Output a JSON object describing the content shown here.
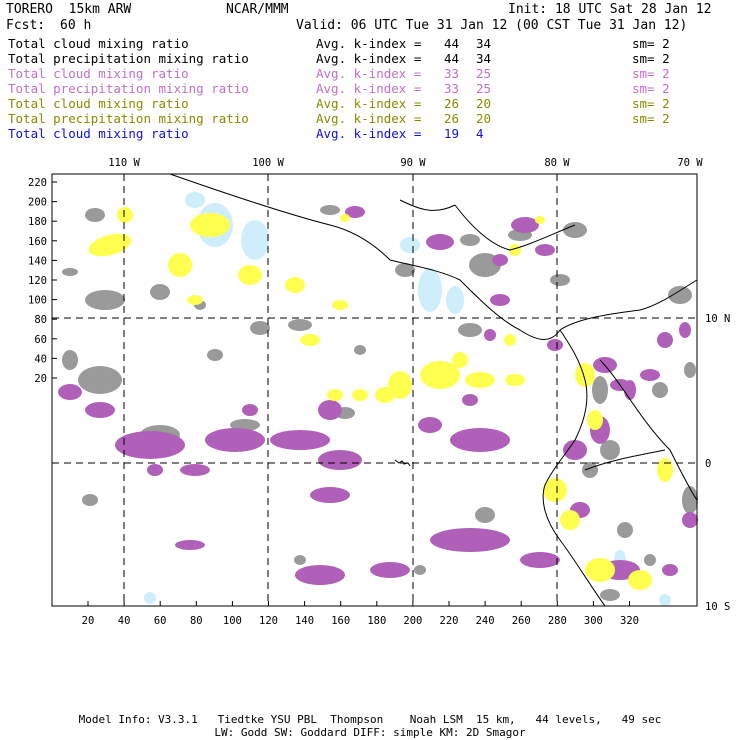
{
  "header": {
    "model": "TORERO  15km ARW",
    "center": "NCAR/MMM",
    "init": "Init: 18 UTC Sat 28 Jan 12",
    "fcst_label": "Fcst:",
    "fcst_value": "60 h",
    "valid": "Valid: 06 UTC Tue 31 Jan 12 (00 CST Tue 31 Jan 12)"
  },
  "legend_rows": [
    {
      "field": "Total cloud mixing ratio",
      "kidx": "Avg. k-index =",
      "from": "44",
      "to": "34",
      "sm": "sm= 2",
      "color": "#000000"
    },
    {
      "field": "Total precipitation mixing ratio",
      "kidx": "Avg. k-index =",
      "from": "44",
      "to": "34",
      "sm": "sm= 2",
      "color": "#000000"
    },
    {
      "field": "Total cloud mixing ratio",
      "kidx": "Avg. k-index =",
      "from": "33",
      "to": "25",
      "sm": "sm= 2",
      "color": "#c070c8"
    },
    {
      "field": "Total precipitation mixing ratio",
      "kidx": "Avg. k-index =",
      "from": "33",
      "to": "25",
      "sm": "sm= 2",
      "color": "#c070c8"
    },
    {
      "field": "Total cloud mixing ratio",
      "kidx": "Avg. k-index =",
      "from": "26",
      "to": "20",
      "sm": "sm= 2",
      "color": "#8a8a00"
    },
    {
      "field": "Total precipitation mixing ratio",
      "kidx": "Avg. k-index =",
      "from": "26",
      "to": "20",
      "sm": "sm= 2",
      "color": "#8a8a00"
    },
    {
      "field": "Total cloud mixing ratio",
      "kidx": "Avg. k-index =",
      "from": "19",
      "to": "4",
      "sm": "",
      "color": "#1010e0"
    }
  ],
  "map": {
    "lon_labels": [
      "110 W",
      "100 W",
      "90 W",
      "80 W",
      "70 W"
    ],
    "lat_labels": [
      "10 N",
      "0",
      "10 S"
    ],
    "y_ticks": [
      "220",
      "200",
      "180",
      "160",
      "140",
      "120",
      "100",
      "80",
      "60",
      "40",
      "20"
    ],
    "x_ticks": [
      "20",
      "40",
      "60",
      "80",
      "100",
      "120",
      "140",
      "160",
      "180",
      "200",
      "220",
      "240",
      "260",
      "280",
      "300",
      "320"
    ],
    "colors": {
      "gray": "#9a9a9a",
      "purple": "#b060b8",
      "yellow": "#ffff50",
      "cyan": "#cdeefa"
    }
  },
  "footer": {
    "line1": "Model Info: V3.3.1   Tiedtke YSU PBL  Thompson    Noah LSM  15 km,   44 levels,   49 sec",
    "line2": "LW: Godd SW: Goddard DIFF: simple KM: 2D Smagor"
  }
}
